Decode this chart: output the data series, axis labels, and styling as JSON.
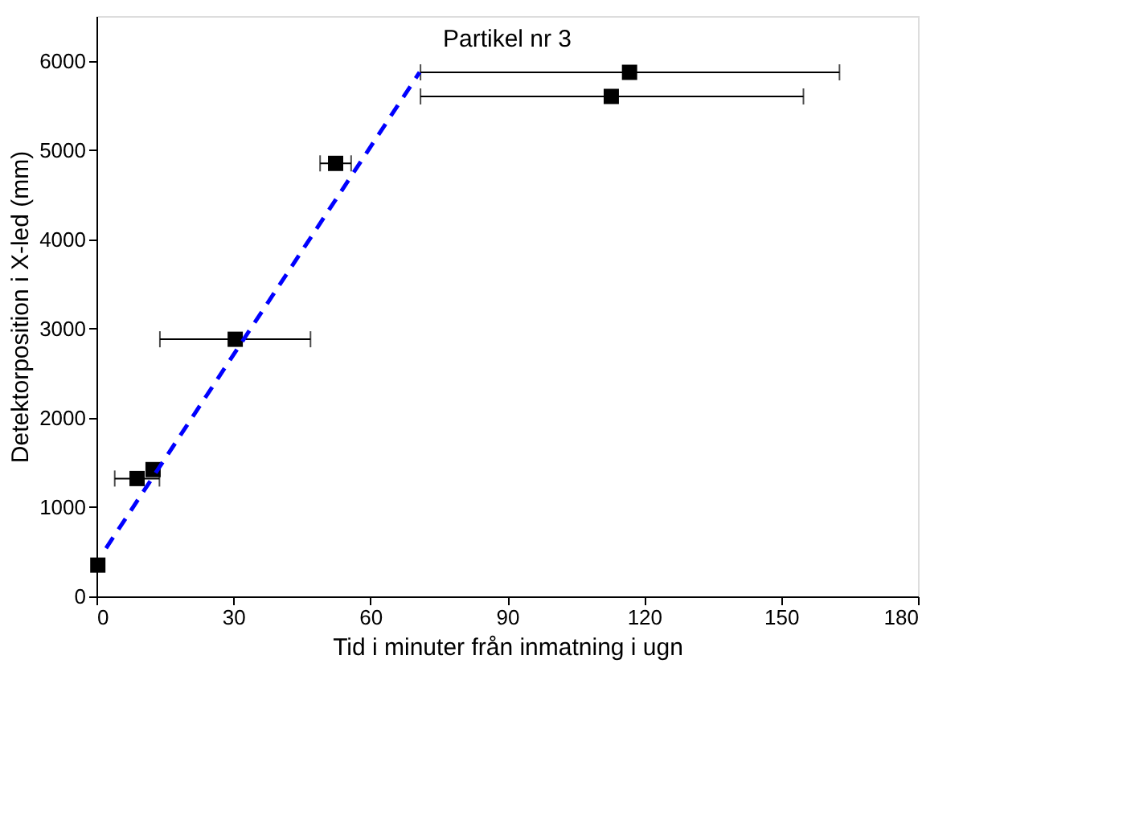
{
  "chart_data": {
    "type": "scatter",
    "title": "Partikel nr 3",
    "xlabel": "Tid i minuter från inmatning i ugn",
    "ylabel": "Detektorposition i X-led (mm)",
    "xlim": [
      0,
      180
    ],
    "xticks": [
      0,
      30,
      60,
      90,
      120,
      150,
      180
    ],
    "ylim": [
      0,
      6500
    ],
    "yticks": [
      0,
      1000,
      2000,
      3000,
      4000,
      5000,
      6000
    ],
    "grid": false,
    "series": [
      {
        "color": "#000000",
        "marker": "square",
        "x": [
          0.3,
          8.9,
          12.4,
          30.4,
          52.4,
          116.8,
          112.8
        ],
        "values": [
          350,
          1320,
          1420,
          2880,
          4850,
          5870,
          5600
        ],
        "xerrors": [
          null,
          [
            4.0,
            13.8
          ],
          null,
          [
            13.9,
            46.9
          ],
          [
            49,
            55.8
          ],
          [
            71,
            162.8
          ],
          [
            71,
            154.9
          ]
        ]
      },
      {
        "type": "line",
        "color": "#0000ff",
        "line_style": "dashed",
        "x": [
          2.1,
          70.8
        ],
        "values": [
          540,
          5870
        ]
      }
    ]
  }
}
